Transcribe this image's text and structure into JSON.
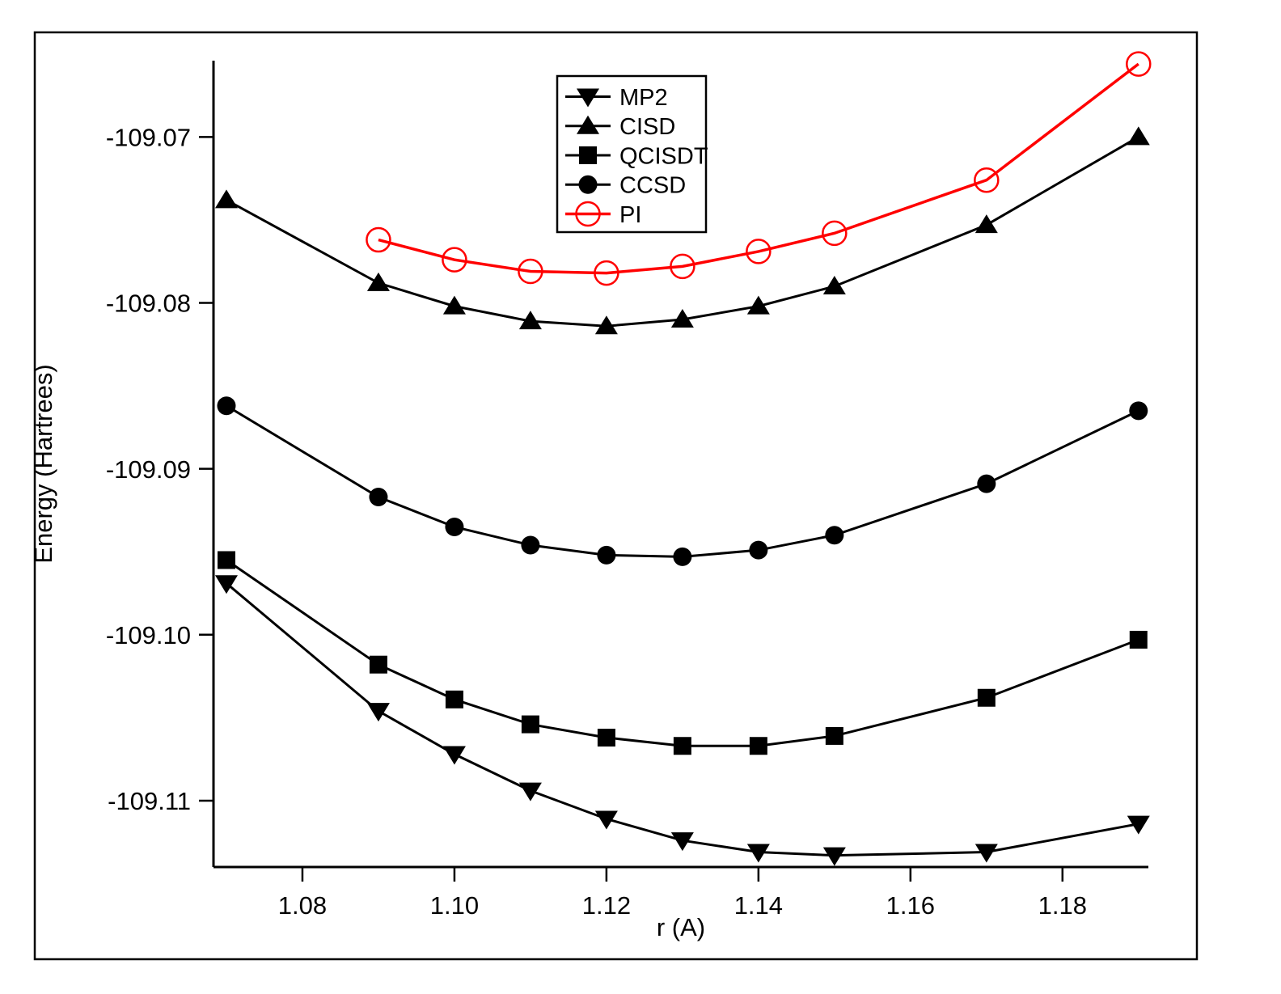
{
  "figure": {
    "background_color": "#ffffff",
    "frame_color": "#000000",
    "accent_color": "#ff0000"
  },
  "chart_data": {
    "type": "line",
    "title": "",
    "xlabel": "r (A)",
    "ylabel": "Energy (Hartrees)",
    "xlim": [
      1.0683,
      1.1913
    ],
    "ylim": [
      -109.114,
      -109.0654
    ],
    "grid": false,
    "x_ticks": {
      "values": [
        1.08,
        1.1,
        1.12,
        1.14,
        1.16,
        1.18
      ],
      "labels": [
        "1.08",
        "1.10",
        "1.12",
        "1.14",
        "1.16",
        "1.18"
      ]
    },
    "y_ticks": {
      "values": [
        -109.07,
        -109.08,
        -109.09,
        -109.1,
        -109.11
      ],
      "labels": [
        "-109.07",
        "-109.08",
        "-109.09",
        "-109.10",
        "-109.11"
      ]
    },
    "legend": {
      "position": "inside-top-center",
      "border": true
    },
    "series": [
      {
        "name": "MP2",
        "marker": "triangle-down",
        "fill": "solid",
        "color": "#000000",
        "x": [
          1.07,
          1.09,
          1.1,
          1.11,
          1.12,
          1.13,
          1.14,
          1.15,
          1.17,
          1.19
        ],
        "y": [
          -109.0969,
          -109.1046,
          -109.1072,
          -109.1094,
          -109.1111,
          -109.1124,
          -109.1131,
          -109.1133,
          -109.1131,
          -109.1114
        ]
      },
      {
        "name": "CISD",
        "marker": "triangle-up",
        "fill": "solid",
        "color": "#000000",
        "x": [
          1.07,
          1.09,
          1.1,
          1.11,
          1.12,
          1.13,
          1.14,
          1.15,
          1.17,
          1.19
        ],
        "y": [
          -109.0738,
          -109.0788,
          -109.0802,
          -109.0811,
          -109.0814,
          -109.081,
          -109.0802,
          -109.079,
          -109.0753,
          -109.07
        ]
      },
      {
        "name": "QCISDT",
        "marker": "square",
        "fill": "solid",
        "color": "#000000",
        "x": [
          1.07,
          1.09,
          1.1,
          1.11,
          1.12,
          1.13,
          1.14,
          1.15,
          1.17,
          1.19
        ],
        "y": [
          -109.0955,
          -109.1018,
          -109.1039,
          -109.1054,
          -109.1062,
          -109.1067,
          -109.1067,
          -109.1061,
          -109.1038,
          -109.1003
        ]
      },
      {
        "name": "CCSD",
        "marker": "circle",
        "fill": "solid",
        "color": "#000000",
        "x": [
          1.07,
          1.09,
          1.1,
          1.11,
          1.12,
          1.13,
          1.14,
          1.15,
          1.17,
          1.19
        ],
        "y": [
          -109.0862,
          -109.0917,
          -109.0935,
          -109.0946,
          -109.0952,
          -109.0953,
          -109.0949,
          -109.094,
          -109.0909,
          -109.0865
        ]
      },
      {
        "name": "PI",
        "marker": "circle-open",
        "fill": "open",
        "color": "#ff0000",
        "x": [
          1.09,
          1.1,
          1.11,
          1.12,
          1.13,
          1.14,
          1.15,
          1.17,
          1.19
        ],
        "y": [
          -109.0762,
          -109.0774,
          -109.0781,
          -109.0782,
          -109.0778,
          -109.0769,
          -109.0758,
          -109.0726,
          -109.0656
        ]
      }
    ]
  }
}
